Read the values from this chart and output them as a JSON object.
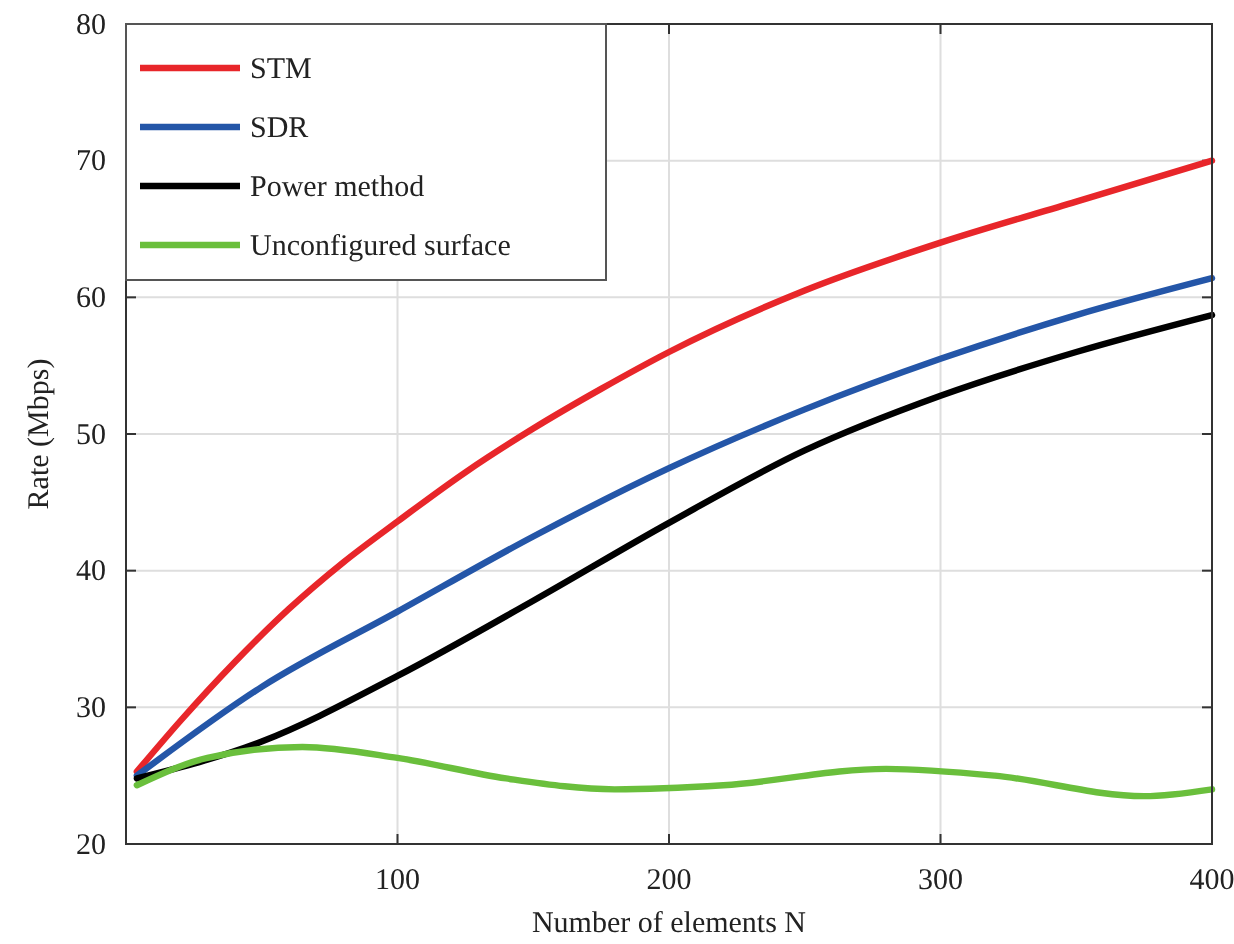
{
  "chart_data": {
    "type": "line",
    "xlabel": "Number of elements N",
    "ylabel": "Rate (Mbps)",
    "xlim": [
      0,
      400
    ],
    "ylim": [
      20,
      80
    ],
    "xticks": [
      {
        "value": 0,
        "label": null
      },
      100,
      200,
      300,
      400
    ],
    "yticks": [
      20,
      30,
      40,
      50,
      60,
      70,
      80
    ],
    "grid": true,
    "legend": "top left",
    "line_style": "solid",
    "marker": "none",
    "series": [
      {
        "name": "STM",
        "color": "#e8262a",
        "x": [
          4,
          20,
          40,
          60,
          80,
          100,
          125,
          150,
          175,
          200,
          250,
          300,
          350,
          400
        ],
        "values": [
          25.3,
          29,
          33.3,
          37.2,
          40.6,
          43.6,
          47.2,
          50.4,
          53.3,
          56,
          60.5,
          64,
          67,
          70
        ]
      },
      {
        "name": "SDR",
        "color": "#2456a8",
        "x": [
          4,
          50,
          100,
          150,
          200,
          250,
          300,
          350,
          400
        ],
        "values": [
          25,
          31.5,
          37,
          42.5,
          47.5,
          51.8,
          55.5,
          58.7,
          61.4
        ]
      },
      {
        "name": "Power method",
        "color": "#000000",
        "x": [
          4,
          50,
          100,
          150,
          200,
          250,
          300,
          350,
          400
        ],
        "values": [
          24.8,
          27.5,
          32.3,
          37.8,
          43.5,
          48.8,
          52.8,
          56,
          58.7
        ]
      },
      {
        "name": "Unconfigured surface",
        "color": "#6abf3c",
        "x": [
          4,
          30,
          65,
          100,
          140,
          180,
          220,
          280,
          320,
          375,
          400
        ],
        "values": [
          24.3,
          26.3,
          27.1,
          26.3,
          24.8,
          24,
          24.3,
          25.5,
          25,
          23.5,
          24
        ]
      }
    ]
  }
}
